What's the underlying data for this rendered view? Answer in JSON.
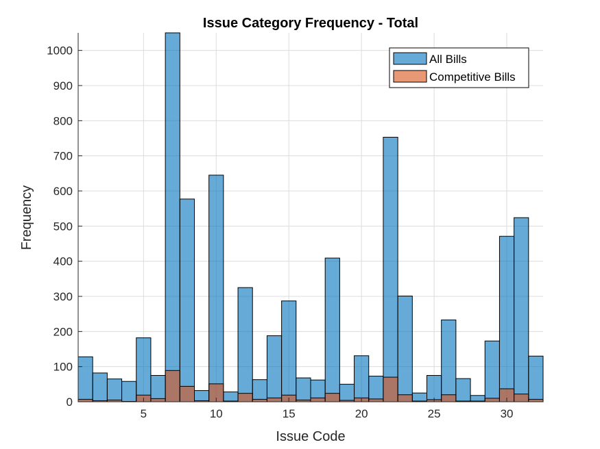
{
  "chart_data": {
    "type": "bar",
    "title": "Issue Category Frequency - Total",
    "xlabel": "Issue Code",
    "ylabel": "Frequency",
    "xlim": [
      0.5,
      32.5
    ],
    "ylim": [
      0,
      1050
    ],
    "xticks": [
      5,
      10,
      15,
      20,
      25,
      30
    ],
    "yticks": [
      0,
      100,
      200,
      300,
      400,
      500,
      600,
      700,
      800,
      900,
      1000
    ],
    "grid": true,
    "legend_position": "top-right",
    "x": [
      1,
      2,
      3,
      4,
      5,
      6,
      7,
      8,
      9,
      10,
      11,
      12,
      13,
      14,
      15,
      16,
      17,
      18,
      19,
      20,
      21,
      22,
      23,
      24,
      25,
      26,
      27,
      28,
      29,
      30,
      31,
      32
    ],
    "series": [
      {
        "name": "All Bills",
        "color": "#0072BD",
        "values": [
          128,
          82,
          65,
          58,
          182,
          75,
          1050,
          577,
          32,
          645,
          28,
          325,
          63,
          188,
          287,
          68,
          62,
          409,
          50,
          131,
          73,
          753,
          301,
          25,
          75,
          233,
          66,
          18,
          173,
          471,
          524,
          130
        ]
      },
      {
        "name": "Competitive Bills",
        "color": "#D95319",
        "values": [
          7,
          3,
          5,
          1,
          19,
          9,
          89,
          44,
          3,
          51,
          2,
          24,
          7,
          11,
          19,
          5,
          11,
          24,
          4,
          11,
          8,
          70,
          20,
          2,
          6,
          20,
          2,
          2,
          10,
          37,
          22,
          7
        ]
      }
    ]
  }
}
